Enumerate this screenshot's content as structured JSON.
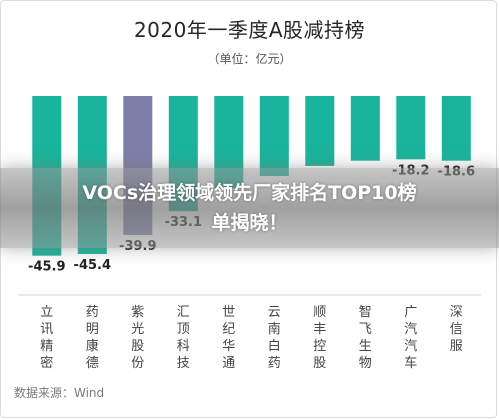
{
  "chart_data": {
    "type": "bar",
    "title": "2020年一季度A股减持榜",
    "subtitle": "（单位：亿元）",
    "categories": [
      "立讯精密",
      "药明康德",
      "紫光股份",
      "汇顶科技",
      "世纪华通",
      "云南白药",
      "顺丰控股",
      "智飞生物",
      "广汽汽车",
      "深信服"
    ],
    "values": [
      -45.9,
      -45.4,
      -39.9,
      -33.1,
      -26.5,
      -23.0,
      -20.1,
      -18.6,
      -18.2,
      -18.6
    ],
    "value_labels": [
      "-45.9",
      "-45.4",
      "-39.9",
      "-33.1",
      "",
      "",
      "",
      "",
      "-18.2",
      "-18.6"
    ],
    "ylim": [
      -50,
      0
    ],
    "grid": false,
    "colors": {
      "bar": "#1ab39b",
      "highlight": "#7d7fa8"
    }
  },
  "banner": {
    "line1": "VOCs治理领域领先厂家排名TOP10榜",
    "line2": "单揭晓！"
  },
  "source": "数据来源：Wind"
}
